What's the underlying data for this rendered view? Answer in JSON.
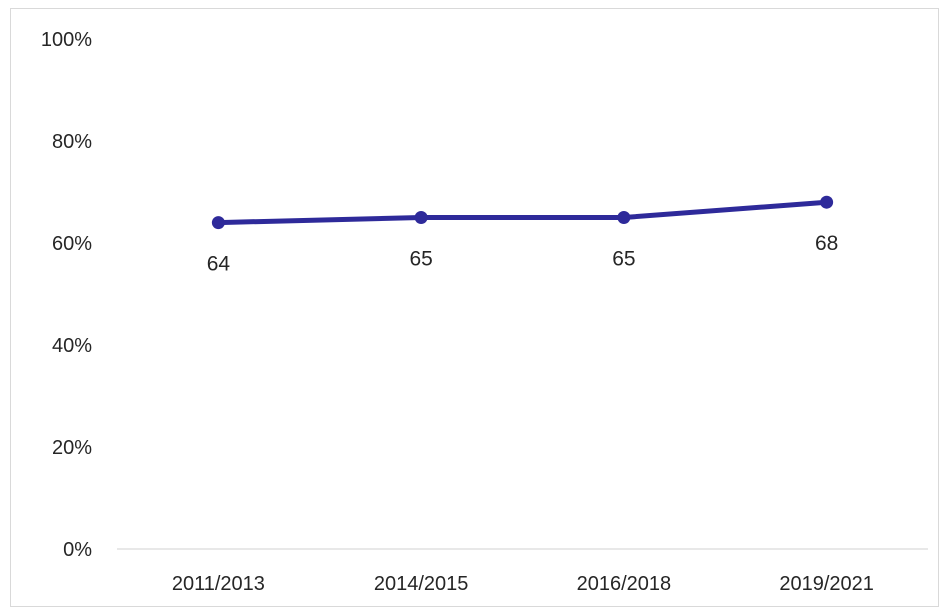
{
  "chart_data": {
    "type": "line",
    "categories": [
      "2011/2013",
      "2014/2015",
      "2016/2018",
      "2019/2021"
    ],
    "series": [
      {
        "values": [
          64,
          65,
          65,
          68
        ],
        "data_labels": [
          "64",
          "65",
          "65",
          "68"
        ],
        "color": "#2e2a9a"
      }
    ],
    "y_ticks": [
      0,
      20,
      40,
      60,
      80,
      100
    ],
    "y_tick_labels": [
      "0%",
      "20%",
      "40%",
      "60%",
      "80%",
      "100%"
    ],
    "ylim": [
      0,
      100
    ],
    "grid": false,
    "legend": "none",
    "title": "",
    "xlabel": "",
    "ylabel": ""
  }
}
